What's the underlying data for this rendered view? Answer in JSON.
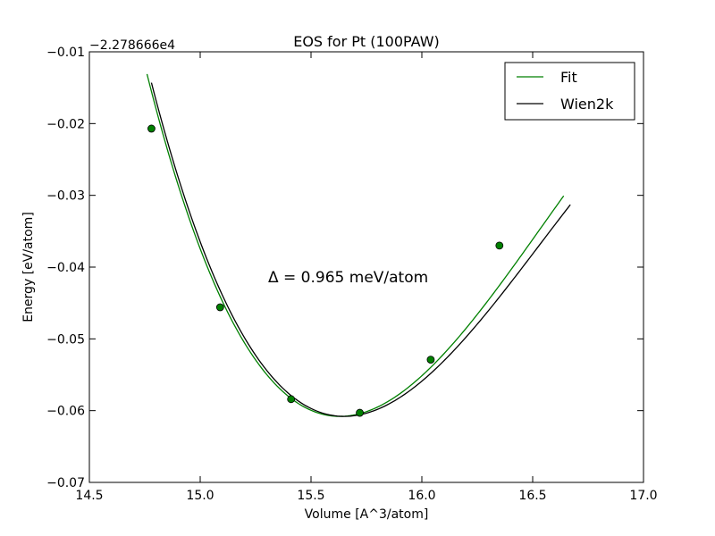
{
  "chart_data": {
    "type": "line",
    "title": "EOS for Pt (100PAW)",
    "xlabel": "Volume [A^3/atom]",
    "ylabel": "Energy [eV/atom]",
    "y_offset_label": "−2.278666e4",
    "xlim": [
      14.5,
      17.0
    ],
    "ylim": [
      -0.07,
      -0.01
    ],
    "x_ticks": [
      "14.5",
      "15.0",
      "15.5",
      "16.0",
      "16.5",
      "17.0"
    ],
    "y_ticks": [
      "−0.01",
      "−0.02",
      "−0.03",
      "−0.04",
      "−0.05",
      "−0.06",
      "−0.07"
    ],
    "grid": false,
    "legend": {
      "position": "top-right",
      "entries": [
        "Fit",
        "Wien2k"
      ]
    },
    "annotation": "Δ = 0.965 meV/atom",
    "series": [
      {
        "name": "Fit",
        "color": "#008000",
        "style": "line",
        "curve": {
          "V0": 15.63,
          "Emin": -0.0608,
          "a": 0.0478,
          "b": -0.0175
        },
        "x_range": [
          14.76,
          16.64
        ]
      },
      {
        "name": "Wien2k",
        "color": "#000000",
        "style": "line",
        "curve": {
          "V0": 15.65,
          "Emin": -0.0608,
          "a": 0.0462,
          "b": -0.0175
        },
        "x_range": [
          14.78,
          16.67
        ]
      },
      {
        "name": "",
        "color": "#008000",
        "style": "markers",
        "points": [
          {
            "x": 14.78,
            "y": -0.0207
          },
          {
            "x": 15.09,
            "y": -0.0456
          },
          {
            "x": 15.41,
            "y": -0.0584
          },
          {
            "x": 15.72,
            "y": -0.0603
          },
          {
            "x": 16.04,
            "y": -0.0529
          },
          {
            "x": 16.35,
            "y": -0.037
          }
        ]
      }
    ]
  }
}
